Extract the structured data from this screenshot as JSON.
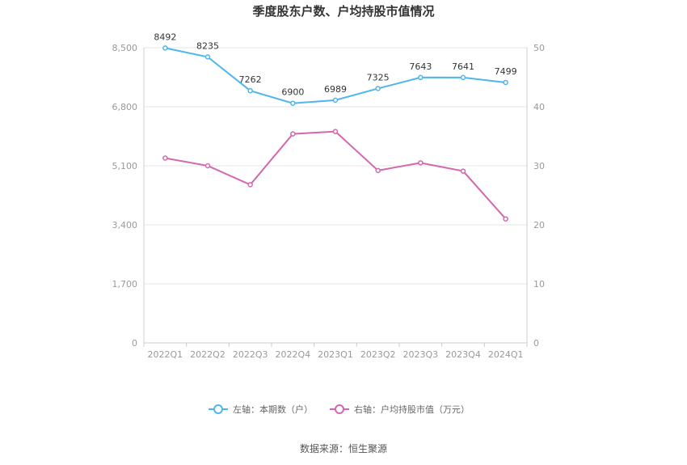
{
  "chart_data": {
    "type": "line",
    "title": "季度股东户数、户均持股市值情况",
    "categories": [
      "2022Q1",
      "2022Q2",
      "2022Q3",
      "2022Q4",
      "2023Q1",
      "2023Q2",
      "2023Q3",
      "2023Q4",
      "2024Q1"
    ],
    "left_axis": {
      "ticks": [
        "0",
        "1,700",
        "3,400",
        "5,100",
        "6,800",
        "8,500"
      ],
      "min": 0,
      "max": 8500
    },
    "right_axis": {
      "ticks": [
        "0",
        "10",
        "20",
        "30",
        "40",
        "50"
      ],
      "min": 0,
      "max": 50
    },
    "series": [
      {
        "name": "左轴：本期数（户）",
        "axis": "left",
        "color": "#4db6ee",
        "values": [
          8492,
          8235,
          7262,
          6900,
          6989,
          7325,
          7643,
          7641,
          7499
        ],
        "labels": [
          "8492",
          "8235",
          "7262",
          "6900",
          "6989",
          "7325",
          "7643",
          "7641",
          "7499"
        ]
      },
      {
        "name": "右轴：户均持股市值（万元）",
        "axis": "right",
        "color": "#d467ad",
        "values": [
          31.3,
          30.0,
          26.8,
          35.4,
          35.8,
          29.2,
          30.5,
          29.1,
          21.0
        ]
      }
    ],
    "legend_position": "bottom",
    "grid": true,
    "source": "数据来源：恒生聚源"
  }
}
